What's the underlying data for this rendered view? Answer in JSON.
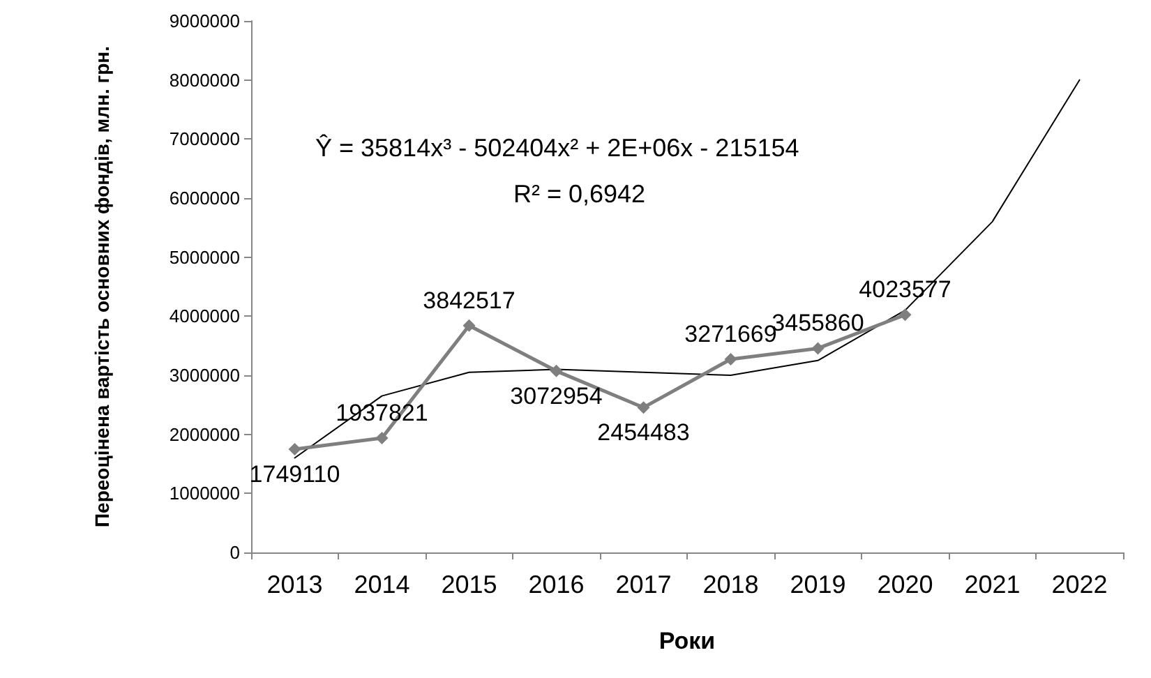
{
  "chart_data": {
    "type": "line",
    "xlabel": "Роки",
    "ylabel": "Переоцінена вартість основних фондів, млн. грн.",
    "categories": [
      "2013",
      "2014",
      "2015",
      "2016",
      "2017",
      "2018",
      "2019",
      "2020",
      "2021",
      "2022"
    ],
    "series": [
      {
        "type": "line",
        "color": "#7f7f7f",
        "marker": "diamond",
        "data_labels": true,
        "values": [
          1749110,
          1937821,
          3842517,
          3072954,
          2454483,
          3271669,
          3455860,
          4023577,
          null,
          null
        ]
      },
      {
        "type": "line",
        "color": "#000000",
        "marker": "none",
        "values": [
          1600000,
          2650000,
          3050000,
          3100000,
          3050000,
          3000000,
          3250000,
          4100000,
          5600000,
          8000000
        ]
      }
    ],
    "ylim": [
      0,
      9000000
    ],
    "yticks": [
      0,
      1000000,
      2000000,
      3000000,
      4000000,
      5000000,
      6000000,
      7000000,
      8000000,
      9000000
    ],
    "grid": false,
    "annotations": [
      "Ŷ = 35814x³ - 502404x² + 2E+06x - 215154",
      "R² = 0,6942"
    ]
  }
}
